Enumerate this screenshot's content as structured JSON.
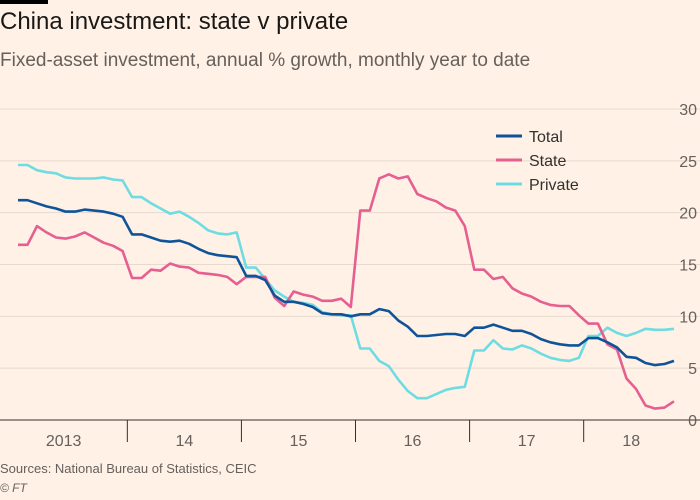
{
  "header": {
    "title": "China investment: state v private",
    "subtitle": "Fixed-asset investment, annual % growth, monthly year to date"
  },
  "footer": {
    "source": "Sources: National Bureau of Statistics, CEIC",
    "credit": "© FT"
  },
  "colors": {
    "background": "#fff1e5",
    "total": "#0f5499",
    "state": "#e55f91",
    "private": "#6fdce3",
    "grid": "#e6d9ce"
  },
  "chart_data": {
    "type": "line",
    "title": "China investment: state v private",
    "subtitle": "Fixed-asset investment, annual % growth, monthly year to date",
    "xlabel": "",
    "ylabel": "",
    "ylim": [
      0,
      30
    ],
    "yticks": [
      0,
      5,
      10,
      15,
      20,
      25,
      30
    ],
    "y_axis_side": "right",
    "grid": true,
    "legend_position": "top-right",
    "x_periods": [
      {
        "label": "2013",
        "start": "2013-01",
        "end": "2013-12"
      },
      {
        "label": "14",
        "start": "2014-01",
        "end": "2014-12"
      },
      {
        "label": "15",
        "start": "2015-01",
        "end": "2015-12"
      },
      {
        "label": "16",
        "start": "2016-01",
        "end": "2016-12"
      },
      {
        "label": "17",
        "start": "2017-01",
        "end": "2017-12"
      },
      {
        "label": "18",
        "start": "2018-01",
        "end": "2018-10"
      }
    ],
    "x": [
      "2013-01",
      "2013-02",
      "2013-03",
      "2013-04",
      "2013-05",
      "2013-06",
      "2013-07",
      "2013-08",
      "2013-09",
      "2013-10",
      "2013-11",
      "2013-12",
      "2014-01",
      "2014-02",
      "2014-03",
      "2014-04",
      "2014-05",
      "2014-06",
      "2014-07",
      "2014-08",
      "2014-09",
      "2014-10",
      "2014-11",
      "2014-12",
      "2015-01",
      "2015-02",
      "2015-03",
      "2015-04",
      "2015-05",
      "2015-06",
      "2015-07",
      "2015-08",
      "2015-09",
      "2015-10",
      "2015-11",
      "2015-12",
      "2016-01",
      "2016-02",
      "2016-03",
      "2016-04",
      "2016-05",
      "2016-06",
      "2016-07",
      "2016-08",
      "2016-09",
      "2016-10",
      "2016-11",
      "2016-12",
      "2017-01",
      "2017-02",
      "2017-03",
      "2017-04",
      "2017-05",
      "2017-06",
      "2017-07",
      "2017-08",
      "2017-09",
      "2017-10",
      "2017-11",
      "2017-12",
      "2018-01",
      "2018-02",
      "2018-03",
      "2018-04",
      "2018-05",
      "2018-06",
      "2018-07",
      "2018-08",
      "2018-09",
      "2018-10"
    ],
    "series": [
      {
        "name": "Total",
        "color": "#0f5499",
        "values": [
          21.2,
          21.2,
          20.9,
          20.6,
          20.4,
          20.1,
          20.1,
          20.3,
          20.2,
          20.1,
          19.9,
          19.6,
          17.9,
          17.9,
          17.6,
          17.3,
          17.2,
          17.3,
          17.0,
          16.5,
          16.1,
          15.9,
          15.8,
          15.7,
          13.9,
          13.9,
          13.5,
          12.0,
          11.4,
          11.4,
          11.2,
          10.9,
          10.3,
          10.2,
          10.2,
          10.0,
          10.2,
          10.2,
          10.7,
          10.5,
          9.6,
          9.0,
          8.1,
          8.1,
          8.2,
          8.3,
          8.3,
          8.1,
          8.9,
          8.9,
          9.2,
          8.9,
          8.6,
          8.6,
          8.3,
          7.8,
          7.5,
          7.3,
          7.2,
          7.2,
          7.9,
          7.9,
          7.5,
          7.0,
          6.1,
          6.0,
          5.5,
          5.3,
          5.4,
          5.7
        ]
      },
      {
        "name": "State",
        "color": "#e55f91",
        "values": [
          16.9,
          16.9,
          18.7,
          18.1,
          17.6,
          17.5,
          17.7,
          18.1,
          17.6,
          17.1,
          16.8,
          16.3,
          13.7,
          13.7,
          14.5,
          14.4,
          15.1,
          14.8,
          14.7,
          14.2,
          14.1,
          14.0,
          13.8,
          13.1,
          13.8,
          13.8,
          13.8,
          11.8,
          11.0,
          12.4,
          12.1,
          11.9,
          11.5,
          11.5,
          11.7,
          10.9,
          20.2,
          20.2,
          23.3,
          23.7,
          23.3,
          23.5,
          21.8,
          21.4,
          21.1,
          20.5,
          20.2,
          18.7,
          14.5,
          14.5,
          13.6,
          13.8,
          12.7,
          12.2,
          11.9,
          11.4,
          11.1,
          11.0,
          11.0,
          10.1,
          9.3,
          9.3,
          7.3,
          6.8,
          4.0,
          3.0,
          1.4,
          1.1,
          1.2,
          1.8
        ]
      },
      {
        "name": "Private",
        "color": "#6fdce3",
        "values": [
          24.6,
          24.6,
          24.1,
          23.9,
          23.8,
          23.4,
          23.3,
          23.3,
          23.3,
          23.4,
          23.2,
          23.1,
          21.5,
          21.5,
          20.9,
          20.4,
          19.9,
          20.1,
          19.6,
          19.0,
          18.3,
          18.0,
          17.9,
          18.1,
          14.7,
          14.7,
          13.6,
          12.5,
          11.9,
          11.4,
          11.3,
          11.1,
          10.4,
          10.2,
          10.1,
          10.1,
          6.9,
          6.9,
          5.7,
          5.2,
          3.9,
          2.8,
          2.1,
          2.1,
          2.5,
          2.9,
          3.1,
          3.2,
          6.7,
          6.7,
          7.7,
          6.9,
          6.8,
          7.2,
          6.9,
          6.4,
          6.0,
          5.8,
          5.7,
          6.0,
          8.1,
          8.1,
          8.9,
          8.4,
          8.1,
          8.4,
          8.8,
          8.7,
          8.7,
          8.8
        ]
      }
    ]
  }
}
